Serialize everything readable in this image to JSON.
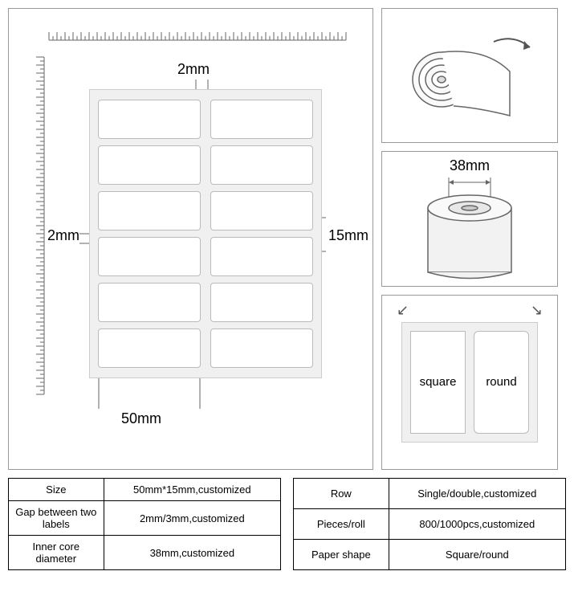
{
  "diagram": {
    "top_gap": "2mm",
    "left_gap": "2mm",
    "height": "15mm",
    "width": "50mm",
    "rows": 6,
    "cols": 2,
    "label_bg": "#ffffff",
    "sheet_bg": "#f0f0f0",
    "border_color": "#cccccc"
  },
  "roll_panel": {
    "core_diameter": "38mm"
  },
  "shape_panel": {
    "square_label": "square",
    "round_label": "round"
  },
  "table_left": [
    {
      "k": "Size",
      "v": "50mm*15mm,customized"
    },
    {
      "k": "Gap between two labels",
      "v": "2mm/3mm,customized"
    },
    {
      "k": "Inner core diameter",
      "v": "38mm,customized"
    }
  ],
  "table_right": [
    {
      "k": "Row",
      "v": "Single/double,customized"
    },
    {
      "k": "Pieces/roll",
      "v": "800/1000pcs,customized"
    },
    {
      "k": "Paper shape",
      "v": "Square/round"
    }
  ],
  "colors": {
    "stroke": "#666666",
    "text": "#000000"
  }
}
